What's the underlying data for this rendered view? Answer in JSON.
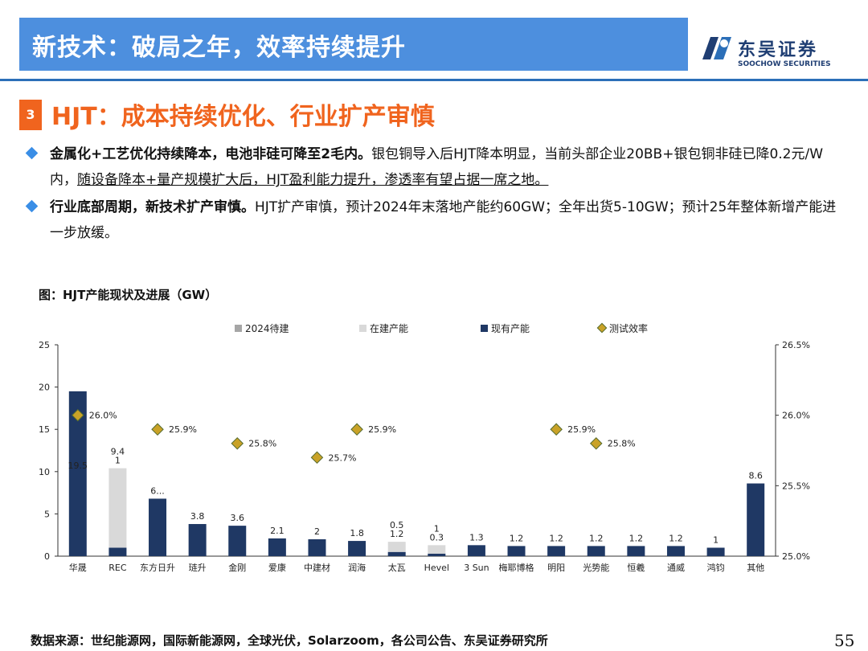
{
  "header": {
    "title": "新技术：破局之年，效率持续提升",
    "logo_cn": "东吴证券",
    "logo_en": "SOOCHOW SECURITIES",
    "accent": "#4d8fde"
  },
  "section": {
    "number": "3",
    "title": "HJT：成本持续优化、行业扩产审慎",
    "color": "#f0641e"
  },
  "bullets": [
    {
      "bold": "金属化+工艺优化持续降本，电池非硅可降至2毛内。",
      "text": "银包铜导入后HJT降本明显，当前头部企业20BB+银包铜非硅已降0.2元/W内，",
      "underlined": "随设备降本+量产规模扩大后，HJT盈利能力提升，渗透率有望占据一席之地。"
    },
    {
      "bold": "行业底部周期，新技术扩产审慎。",
      "text": "HJT扩产审慎，预计2024年末落地产能约60GW；全年出货5-10GW；预计25年整体新增产能进一步放缓。"
    }
  ],
  "figure_title": "图：HJT产能现状及进展（GW）",
  "chart_data": {
    "type": "bar",
    "categories": [
      "华晟",
      "REC",
      "东方日升",
      "琏升",
      "金刚",
      "爱康",
      "中建材",
      "润海",
      "太瓦",
      "Hevel",
      "3 Sun",
      "梅耶博格",
      "明阳",
      "光势能",
      "恒羲",
      "通威",
      "鸿钧",
      "其他"
    ],
    "legend": [
      "2024待建",
      "在建产能",
      "现有产能",
      "测试效率"
    ],
    "legend_position": "top",
    "series": [
      {
        "name": "现有产能",
        "color": "#1f3864",
        "values": [
          19.5,
          1,
          6.8,
          3.8,
          3.6,
          2.1,
          2,
          1.8,
          0.5,
          0.3,
          1.3,
          1.2,
          1.2,
          1.2,
          1.2,
          1.2,
          1,
          8.6
        ]
      },
      {
        "name": "在建产能",
        "color": "#d9d9d9",
        "values": [
          0,
          9.4,
          0,
          0,
          0,
          0,
          0,
          0,
          1.2,
          1,
          0,
          0,
          0,
          0,
          0,
          0,
          0,
          0
        ]
      },
      {
        "name": "2024待建",
        "color": "#a6a6a6",
        "values": [
          0,
          0,
          0,
          0,
          0,
          0,
          0,
          0,
          0,
          0,
          0,
          0,
          0,
          0,
          0,
          0,
          0,
          0
        ]
      },
      {
        "name": "测试效率",
        "color": "#c9a227",
        "axis": "right",
        "values": [
          26.0,
          null,
          25.9,
          null,
          25.8,
          null,
          25.7,
          25.9,
          null,
          null,
          null,
          null,
          25.9,
          25.8,
          null,
          null,
          null,
          null
        ]
      }
    ],
    "bar_labels": [
      "19.5",
      "9.4|1",
      "6...",
      "3.8",
      "3.6",
      "2.1",
      "2",
      "1.8",
      "0.5|1.2",
      "1|0.3",
      "1.3",
      "1.2",
      "1.2",
      "1.2",
      "1.2",
      "1.2",
      "1",
      "8.6"
    ],
    "efficiency_labels": [
      "26.0%",
      "",
      "25.9%",
      "",
      "25.8%",
      "",
      "25.7%",
      "25.9%",
      "",
      "",
      "",
      "",
      "25.9%",
      "25.8%",
      "",
      "",
      "",
      ""
    ],
    "y_left": {
      "min": 0,
      "max": 25,
      "ticks": [
        0,
        5,
        10,
        15,
        20,
        25
      ]
    },
    "y_right": {
      "min": 25.0,
      "max": 26.5,
      "ticks": [
        "25.0%",
        "25.5%",
        "26.0%",
        "26.5%"
      ]
    },
    "grid": false
  },
  "source": "数据来源：世纪能源网，国际新能源网，全球光伏，Solarzoom，各公司公告、东吴证券研究所",
  "page_number": "55"
}
